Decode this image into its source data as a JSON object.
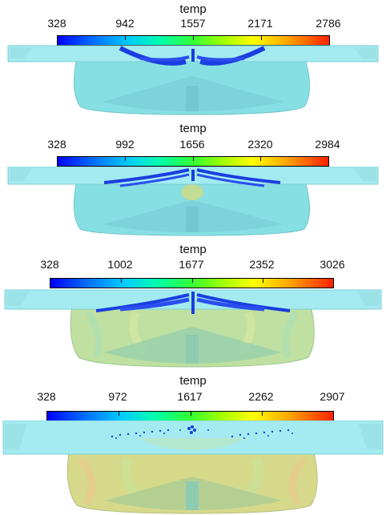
{
  "panels": [
    {
      "title": "temp",
      "ticks": [
        "328",
        "942",
        "1557",
        "2171",
        "2786"
      ]
    },
    {
      "title": "temp",
      "ticks": [
        "328",
        "992",
        "1656",
        "2320",
        "2984"
      ]
    },
    {
      "title": "temp",
      "ticks": [
        "328",
        "1002",
        "1677",
        "2352",
        "3026"
      ]
    },
    {
      "title": "temp",
      "ticks": [
        "328",
        "972",
        "1617",
        "2262",
        "2907"
      ]
    }
  ],
  "colors": {
    "chamber": "#86dfe3",
    "spray": "#1a3ee0",
    "hot_gas": "#c9dc8a",
    "colorbar_min": "#0000ff",
    "colorbar_max": "#ff2200"
  }
}
